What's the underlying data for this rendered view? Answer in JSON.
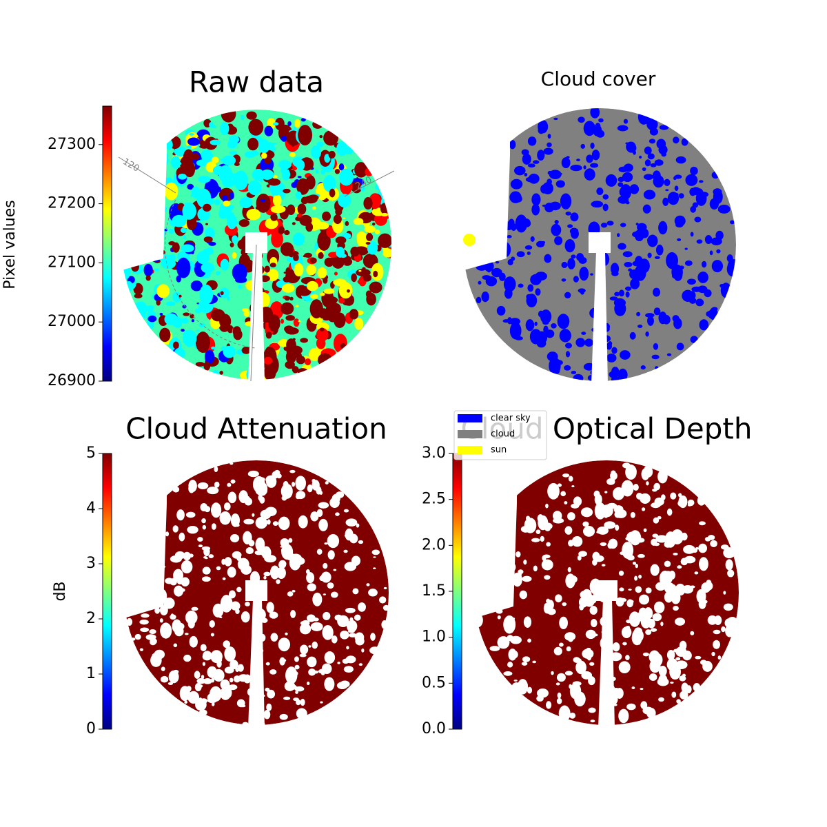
{
  "chart_data": [
    {
      "type": "heatmap",
      "title": "Raw data",
      "colormap": "jet",
      "colorbar": {
        "label": "Pixel values",
        "lim": [
          26900,
          27365
        ],
        "ticks": [
          26900,
          27000,
          27100,
          27200,
          27300
        ]
      },
      "annotations": [
        "120",
        "240"
      ]
    },
    {
      "type": "classification",
      "title": "Cloud cover",
      "series": [
        {
          "name": "clear sky",
          "color": "#0000ff"
        },
        {
          "name": "cloud",
          "color": "#808080"
        },
        {
          "name": "sun",
          "color": "#ffff00"
        }
      ]
    },
    {
      "type": "heatmap",
      "title": "Cloud Attenuation",
      "colormap": "jet",
      "color": "#800000",
      "colorbar": {
        "label": "dB",
        "lim": [
          0,
          5
        ],
        "ticks": [
          0,
          1,
          2,
          3,
          4,
          5
        ]
      }
    },
    {
      "type": "heatmap",
      "title": "Cloud Optical Depth",
      "colormap": "jet",
      "color": "#800000",
      "colorbar": {
        "lim": [
          0,
          3
        ],
        "ticks": [
          {
            "value": 0,
            "label": "0.0"
          },
          {
            "value": 0.5,
            "label": "0.5"
          },
          {
            "value": 1,
            "label": "1.0"
          },
          {
            "value": 1.5,
            "label": "1.5"
          },
          {
            "value": 2,
            "label": "2.0"
          },
          {
            "value": 2.5,
            "label": "2.5"
          },
          {
            "value": 3,
            "label": "3.0"
          }
        ]
      }
    }
  ]
}
